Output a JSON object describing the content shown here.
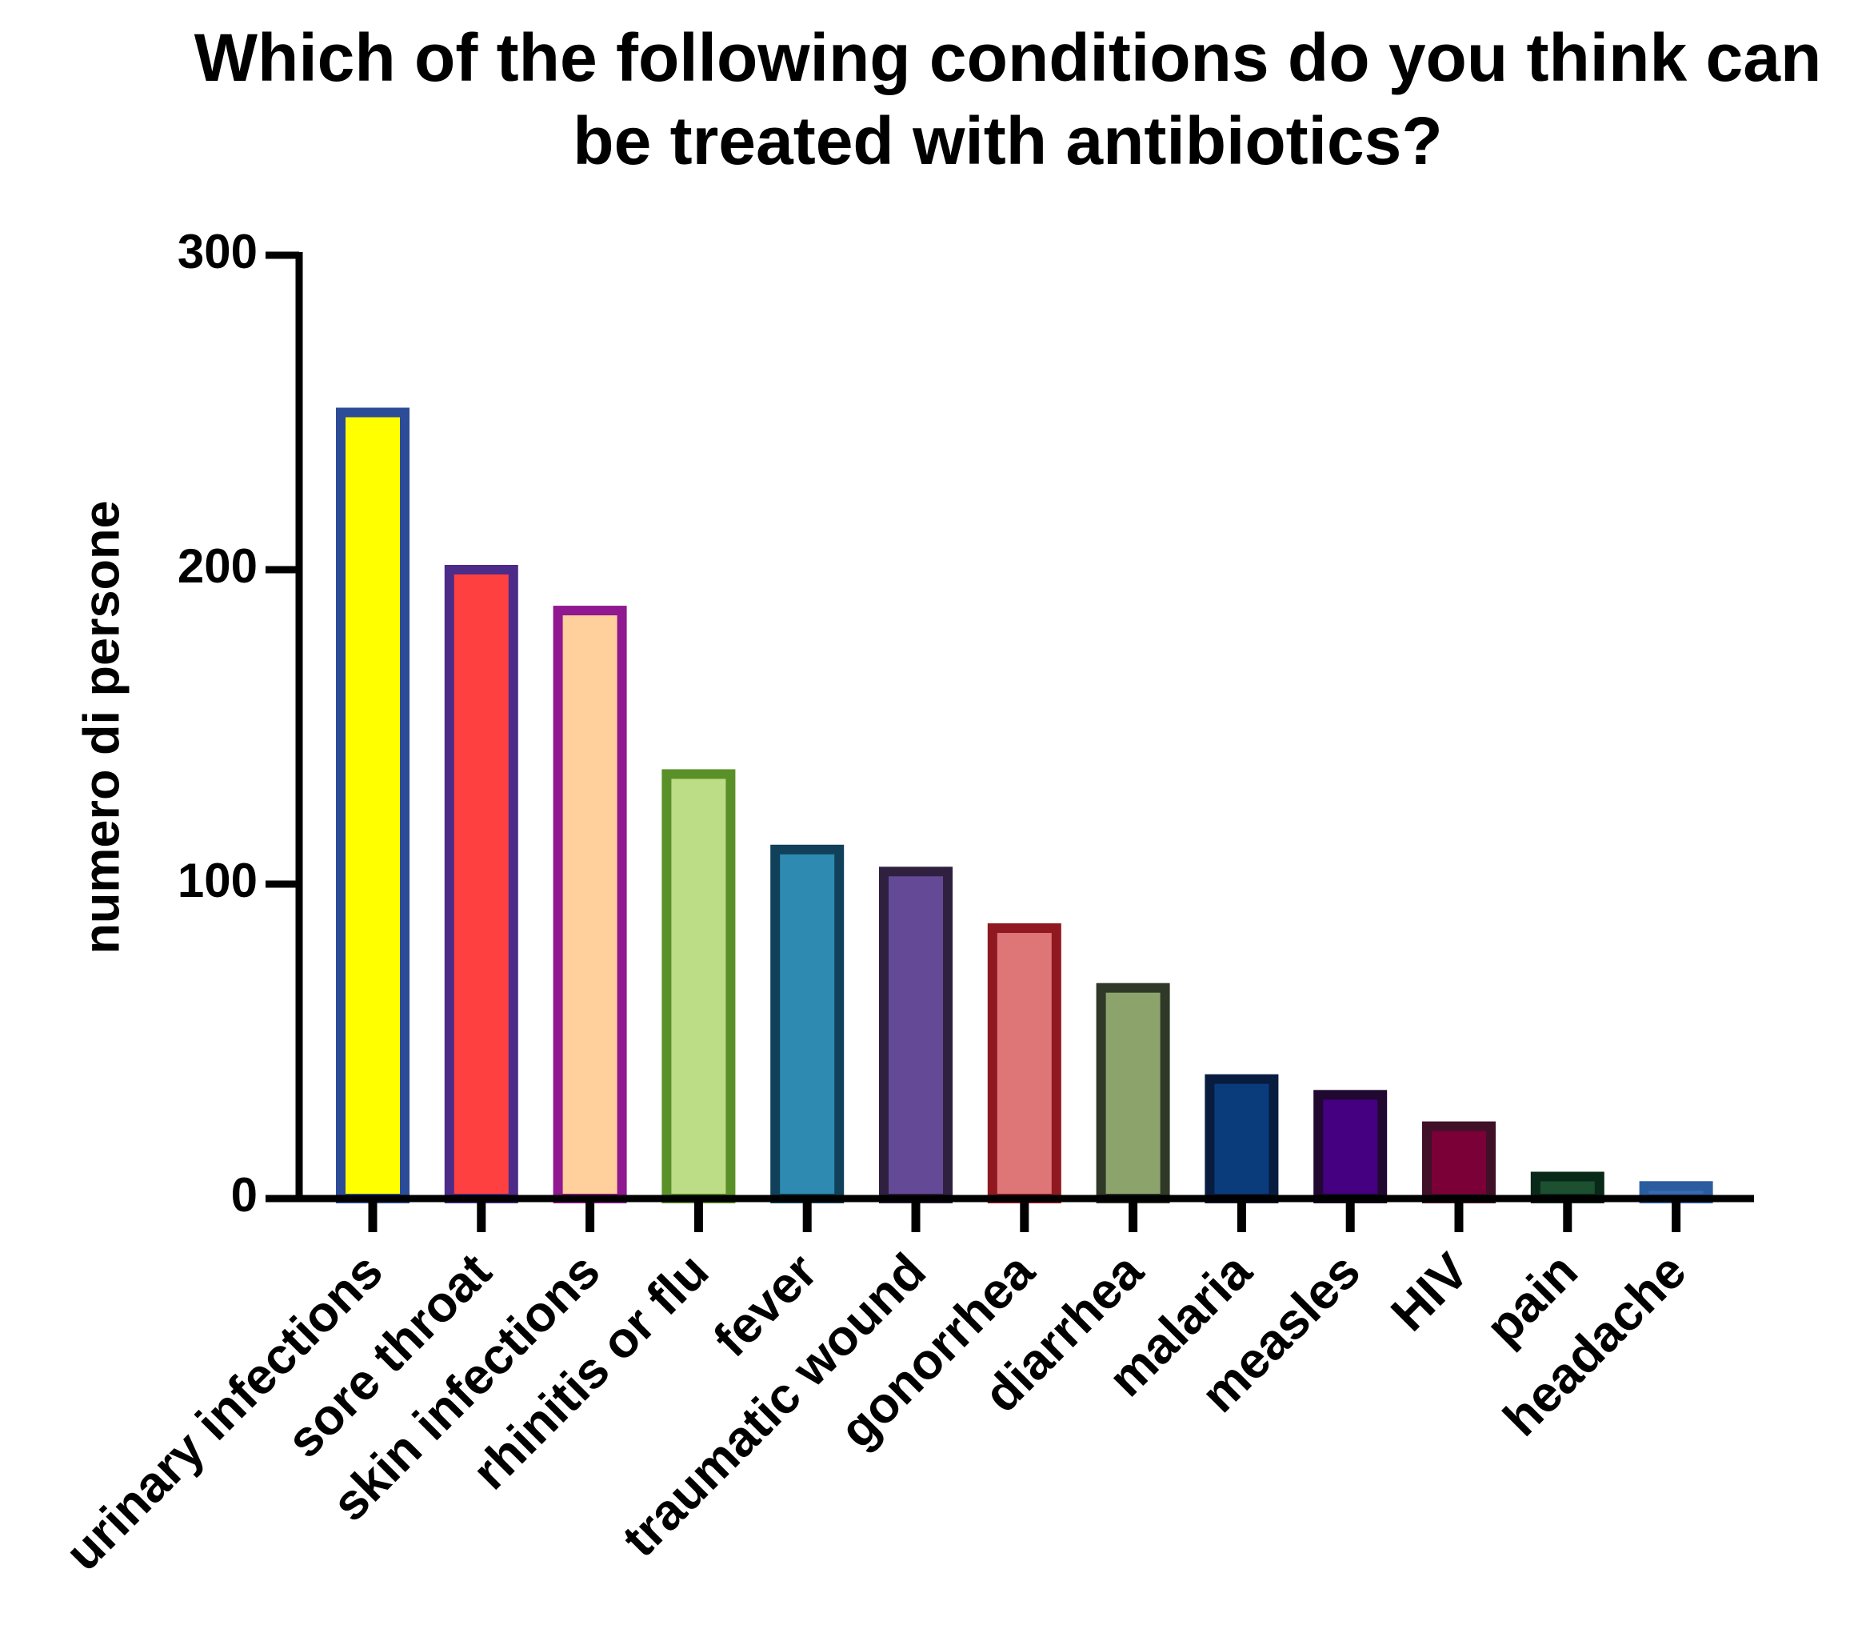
{
  "chart_data": {
    "type": "bar",
    "title": "Which of the following conditions do you think can be treated with antibiotics?",
    "y_label": "numero di persone",
    "categories": [
      "urinary infections",
      "sore throat",
      "skin infections",
      "rhinitis or flu",
      "fever",
      "traumatic wound",
      "gonorrhea",
      "diarrhea",
      "malaria",
      "measles",
      "HIV",
      "pain",
      "headache"
    ],
    "values": [
      250,
      200,
      187,
      135,
      111,
      104,
      86,
      67,
      38,
      33,
      23,
      7,
      4
    ],
    "colors": [
      "#ffff00",
      "#ff4040",
      "#ffd09c",
      "#bcdc86",
      "#2e8ab0",
      "#644a96",
      "#de7576",
      "#8ca46c",
      "#0a3c7c",
      "#440080",
      "#7c0038",
      "#1c5030",
      "#3a6ab0"
    ],
    "edge_colors": [
      "#2c4c98",
      "#4c2c88",
      "#901890",
      "#5a9028",
      "#10405a",
      "#302040",
      "#901820",
      "#303828",
      "#081c40",
      "#200830",
      "#401028",
      "#082818",
      "#2c5ca0"
    ],
    "ylim": [
      0,
      300
    ],
    "yticks": [
      0,
      100,
      200,
      300
    ]
  }
}
